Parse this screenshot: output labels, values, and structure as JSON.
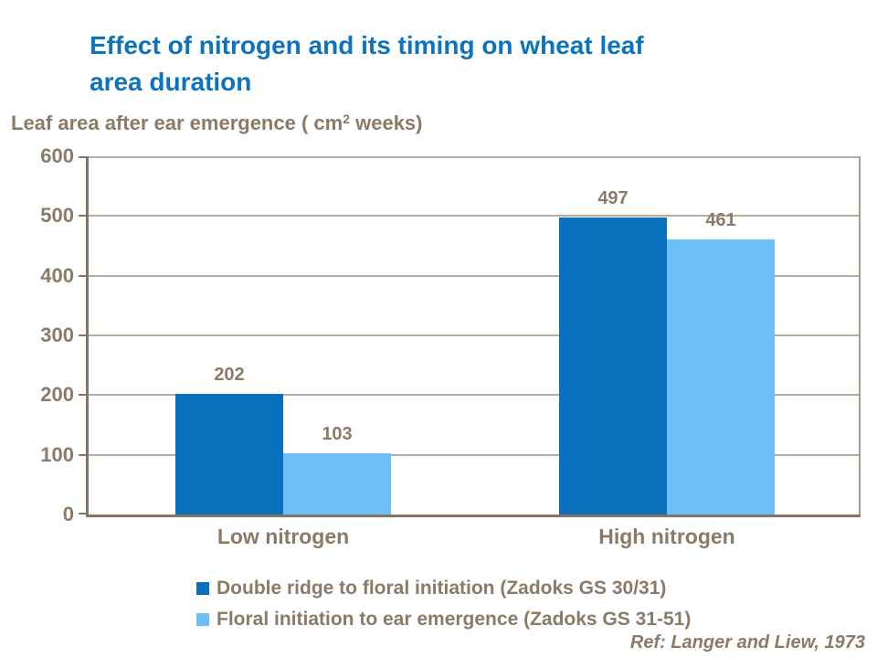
{
  "title": {
    "line1": "Effect of nitrogen and its timing on wheat leaf",
    "line2": "area duration"
  },
  "y_axis_title": {
    "prefix": "Leaf area after ear emergence ( cm",
    "superscript": "2",
    "suffix": " weeks)"
  },
  "reference": "Ref: Langer and Liew, 1973",
  "colors": {
    "title_blue": "#0d73bd",
    "text_brown": "#8a7a66",
    "axis_dark": "#837463",
    "gridline": "#b6ada1",
    "plot_right_border": "#a79e91",
    "series_dark_blue": "#0a70be",
    "series_light_blue": "#6cbef5"
  },
  "chart_data": {
    "type": "bar",
    "title": "Effect of nitrogen and its timing on wheat leaf area duration",
    "ylabel": "Leaf area after ear emergence ( cm2 weeks)",
    "xlabel": "",
    "categories": [
      "Low nitrogen",
      "High nitrogen"
    ],
    "series": [
      {
        "name": "Double ridge to floral initiation (Zadoks GS 30/31)",
        "color": "#0a70be",
        "values": [
          202,
          497
        ]
      },
      {
        "name": "Floral initiation to ear emergence (Zadoks GS 31-51)",
        "color": "#6cbef5",
        "values": [
          103,
          461
        ]
      }
    ],
    "ylim": [
      0,
      600
    ],
    "yticks": [
      0,
      100,
      200,
      300,
      400,
      500,
      600
    ],
    "grid": true,
    "data_labels": [
      202,
      103,
      497,
      461
    ],
    "legend_position": "bottom"
  }
}
